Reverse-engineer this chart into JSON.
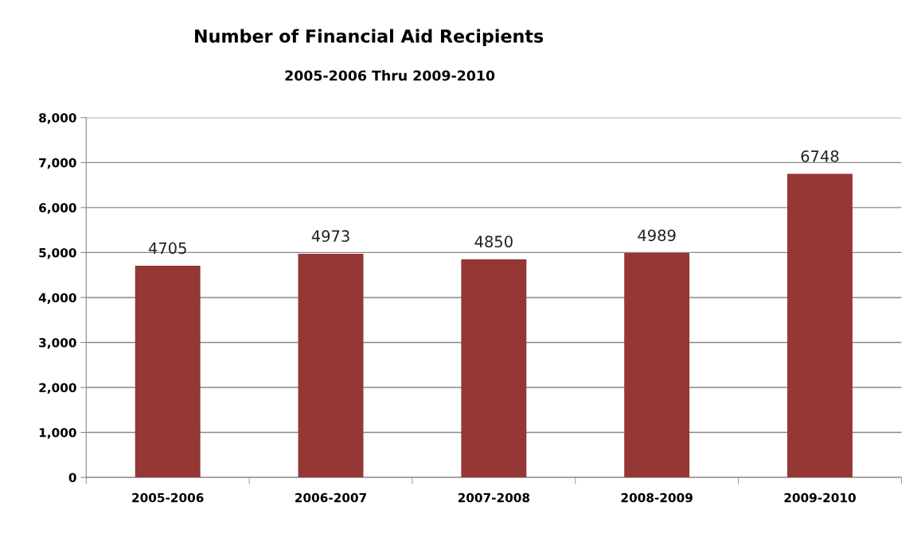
{
  "chart_data": {
    "type": "bar",
    "title": "Number of Financial Aid Recipients",
    "subtitle": "2005-2006 Thru 2009-2010",
    "categories": [
      "2005-2006",
      "2006-2007",
      "2007-2008",
      "2008-2009",
      "2009-2010"
    ],
    "values": [
      4705,
      4973,
      4850,
      4989,
      6748
    ],
    "color": "#953735",
    "ylim": [
      0,
      8000
    ],
    "yticks": [
      0,
      {
        "value": 1000,
        "label": "1,000"
      },
      {
        "value": 2000,
        "label": "2,000"
      },
      {
        "value": 3000,
        "label": "3,000"
      },
      {
        "value": 4000,
        "label": "4,000"
      },
      {
        "value": 5000,
        "label": "5,000"
      },
      {
        "value": 6000,
        "label": "6,000"
      },
      {
        "value": 7000,
        "label": "7,000"
      },
      {
        "value": 8000,
        "label": "8,000"
      }
    ],
    "grid": "y",
    "data_labels": true
  }
}
